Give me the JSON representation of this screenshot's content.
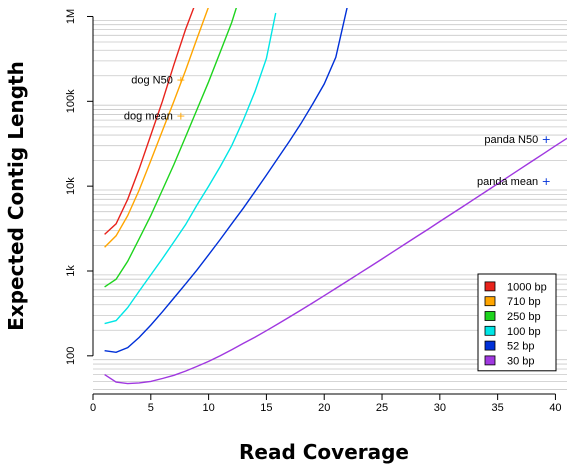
{
  "chart_data": {
    "type": "line",
    "xlabel": "Read Coverage",
    "ylabel": "Expected Contig Length",
    "xlim": [
      0,
      41
    ],
    "ylim_log10": [
      1.55,
      6.1
    ],
    "y_scale": "log",
    "grid": "horizontal-minor",
    "x_ticks": [
      0,
      5,
      10,
      15,
      20,
      25,
      30,
      35,
      40
    ],
    "x_tick_labels": [
      "0",
      "5",
      "10",
      "15",
      "20",
      "25",
      "30",
      "35",
      "40"
    ],
    "y_ticks": [
      100,
      1000,
      10000,
      100000,
      1000000
    ],
    "y_tick_labels": [
      "100",
      "1k",
      "10k",
      "100k",
      "1M"
    ],
    "legend_position": "bottom-right",
    "series": [
      {
        "name": "1000 bp",
        "color": "#e8231c",
        "x": [
          1,
          2,
          3,
          4,
          5,
          6,
          7,
          8,
          9,
          9.9
        ],
        "y": [
          2700,
          3600,
          7000,
          16000,
          40000,
          100000,
          270000,
          700000,
          1600000,
          3000000
        ]
      },
      {
        "name": "710 bp",
        "color": "#ffa500",
        "x": [
          1,
          2,
          3,
          4,
          5,
          6,
          7,
          8,
          9,
          10,
          10.3
        ],
        "y": [
          1900,
          2600,
          4500,
          9000,
          20000,
          45000,
          100000,
          230000,
          550000,
          1300000,
          1800000
        ]
      },
      {
        "name": "250 bp",
        "color": "#1ed41e",
        "x": [
          1,
          2,
          3,
          4,
          5,
          6,
          7,
          8,
          9,
          10,
          11,
          12,
          12.5
        ],
        "y": [
          650,
          800,
          1300,
          2400,
          4500,
          9000,
          18000,
          38000,
          80000,
          170000,
          380000,
          850000,
          1400000
        ]
      },
      {
        "name": "100 bp",
        "color": "#00e6e6",
        "x": [
          1,
          2,
          3,
          4,
          5,
          6,
          7,
          8,
          9,
          10,
          11,
          12,
          13,
          14,
          15,
          15.8
        ],
        "y": [
          240,
          260,
          370,
          580,
          900,
          1400,
          2200,
          3500,
          6000,
          10000,
          17000,
          30000,
          60000,
          130000,
          320000,
          1100000
        ]
      },
      {
        "name": "52 bp",
        "color": "#0030d8",
        "x": [
          1,
          2,
          3,
          4,
          5,
          6,
          7,
          8,
          9,
          10,
          11,
          12,
          13,
          14,
          15,
          16,
          17,
          18,
          19,
          20,
          21,
          22
        ],
        "y": [
          115,
          110,
          125,
          165,
          230,
          330,
          480,
          700,
          1030,
          1550,
          2350,
          3600,
          5500,
          8600,
          13500,
          21500,
          34000,
          55000,
          93000,
          160000,
          330000,
          1300000
        ]
      },
      {
        "name": "30 bp",
        "color": "#a038e0",
        "x": [
          1,
          2,
          3,
          4,
          5,
          6,
          7,
          8,
          9,
          10,
          11,
          12,
          13,
          14,
          15,
          16,
          17,
          18,
          19,
          20,
          21,
          22,
          23,
          24,
          25,
          26,
          27,
          28,
          29,
          30,
          31,
          32,
          33,
          34,
          35,
          36,
          37,
          38,
          39,
          40,
          41
        ],
        "y": [
          60,
          49,
          47,
          48,
          50,
          54,
          59,
          66,
          75,
          86,
          100,
          118,
          140,
          166,
          198,
          238,
          287,
          347,
          421,
          512,
          623,
          760,
          928,
          1133,
          1386,
          1700,
          2080,
          2550,
          3120,
          3830,
          4700,
          5760,
          7070,
          8680,
          10660,
          13100,
          16090,
          19780,
          24300,
          29900,
          36700
        ]
      }
    ],
    "annotations": [
      {
        "label": "dog N50",
        "x": 7.6,
        "y": 180000,
        "marker": "+",
        "color": "#ffa500"
      },
      {
        "label": "dog mean",
        "x": 7.6,
        "y": 68000,
        "marker": "+",
        "color": "#ffa500"
      },
      {
        "label": "panda N50",
        "x": 39.2,
        "y": 36000,
        "marker": "+",
        "color": "#0030d8"
      },
      {
        "label": "panda mean",
        "x": 39.2,
        "y": 11500,
        "marker": "+",
        "color": "#0030d8"
      }
    ]
  }
}
